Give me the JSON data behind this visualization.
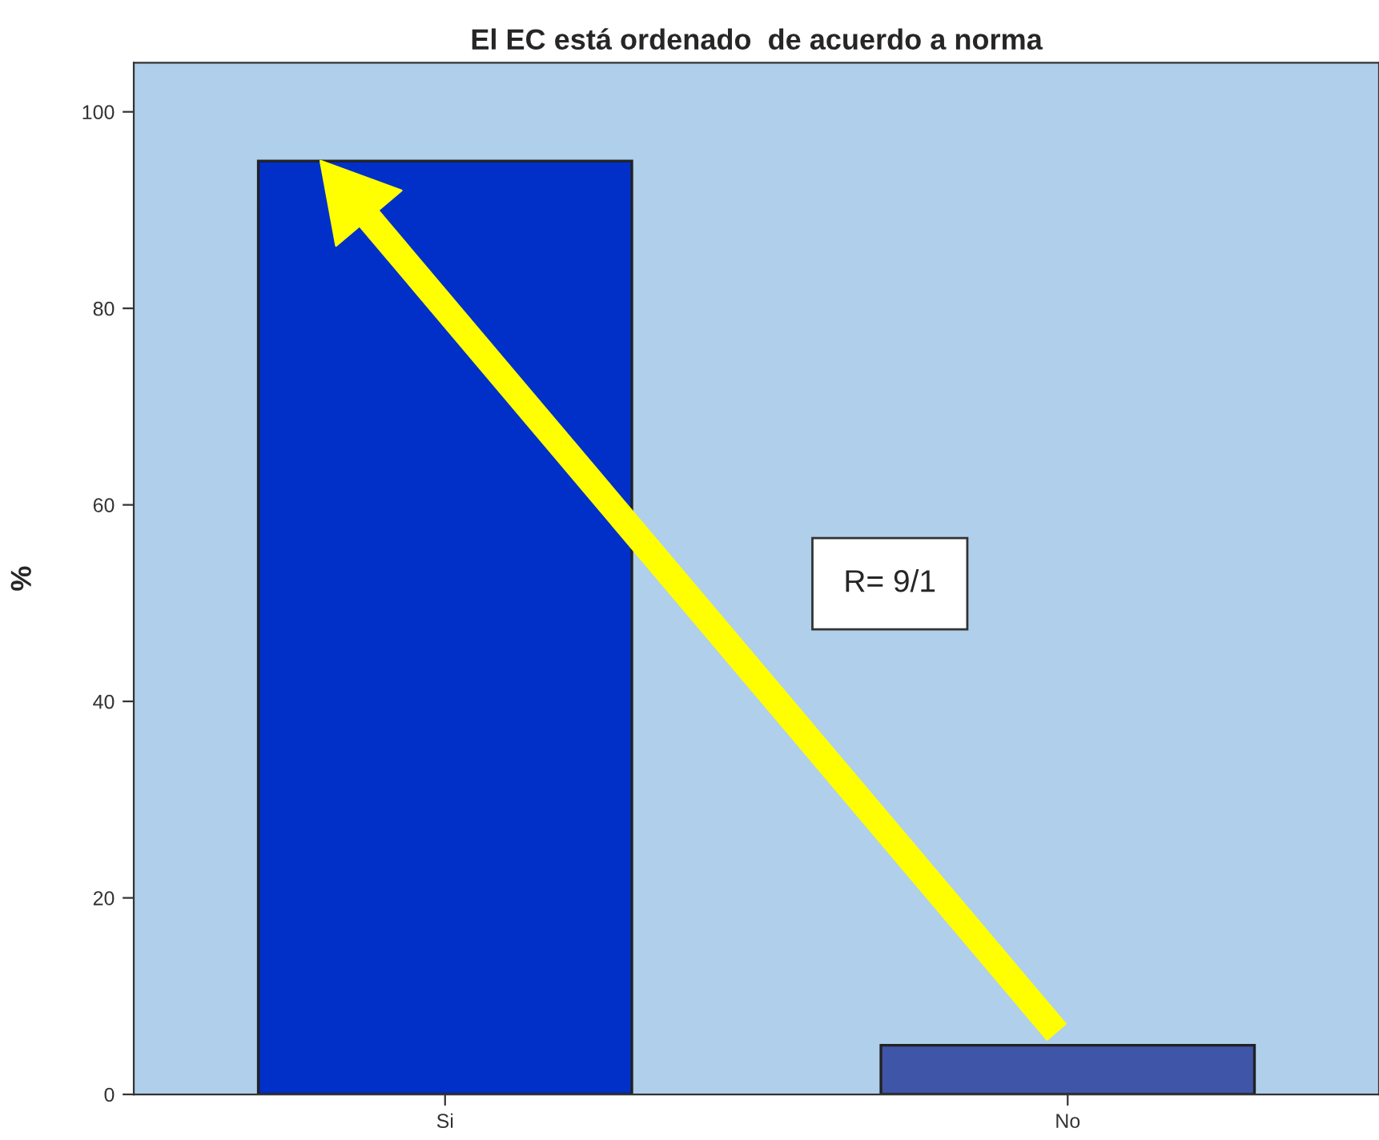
{
  "chart_data": {
    "type": "bar",
    "title": "El EC está ordenado  de acuerdo a norma",
    "ylabel": "%",
    "categories": [
      "Si",
      "No"
    ],
    "values": [
      95,
      5
    ],
    "colors": [
      "#0030c8",
      "#3f55a8"
    ],
    "ylim": [
      0,
      105
    ],
    "yticks": [
      0,
      20,
      40,
      60,
      80,
      100
    ],
    "grid": false,
    "annotations": [
      "R= 9/1"
    ]
  }
}
